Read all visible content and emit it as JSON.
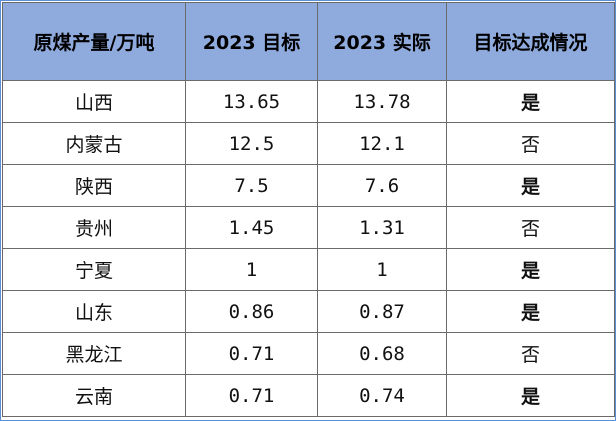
{
  "table": {
    "headers": [
      "原煤产量/万吨",
      "2023 目标",
      "2023 实际",
      "目标达成情况"
    ],
    "rows": [
      {
        "province": "山西",
        "target": "13.65",
        "actual": "13.78",
        "status": "是",
        "achieved": true
      },
      {
        "province": "内蒙古",
        "target": "12.5",
        "actual": "12.1",
        "status": "否",
        "achieved": false
      },
      {
        "province": "陕西",
        "target": "7.5",
        "actual": "7.6",
        "status": "是",
        "achieved": true
      },
      {
        "province": "贵州",
        "target": "1.45",
        "actual": "1.31",
        "status": "否",
        "achieved": false
      },
      {
        "province": "宁夏",
        "target": "1",
        "actual": "1",
        "status": "是",
        "achieved": true
      },
      {
        "province": "山东",
        "target": "0.86",
        "actual": "0.87",
        "status": "是",
        "achieved": true
      },
      {
        "province": "黑龙江",
        "target": "0.71",
        "actual": "0.68",
        "status": "否",
        "achieved": false
      },
      {
        "province": "云南",
        "target": "0.71",
        "actual": "0.74",
        "status": "是",
        "achieved": true
      }
    ]
  },
  "colors": {
    "header_bg": "#8faadc",
    "achieved": "#c00000",
    "not_achieved": "#70ad47",
    "border": "#6a6a6a",
    "frame": "#5b8fd6"
  }
}
